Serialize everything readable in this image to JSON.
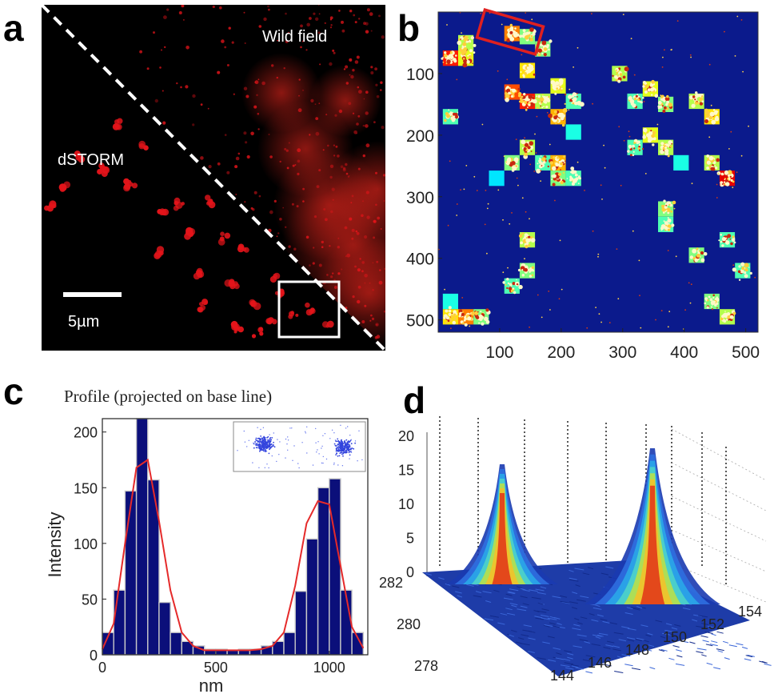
{
  "panels": {
    "a": {
      "letter": "a",
      "wild_label": "Wild field",
      "dstorm_label": "dSTORM",
      "scalebar_label": "5µm",
      "colors": {
        "background": "#000000",
        "signal": "#e4141a",
        "divider": "#ffffff",
        "roi_box": "#ffffff"
      }
    },
    "b": {
      "letter": "b",
      "colors": {
        "background": "#0b1a8c",
        "roi_box": "#e02020"
      }
    },
    "c": {
      "letter": "c",
      "title": "Profile (projected on base line)"
    },
    "d": {
      "letter": "d"
    }
  },
  "chart_data": [
    {
      "panel": "b",
      "type": "heatmap",
      "x_ticks": [
        "100",
        "200",
        "300",
        "400",
        "500"
      ],
      "y_ticks": [
        "100",
        "200",
        "300",
        "400",
        "500"
      ],
      "xlim": [
        0,
        520
      ],
      "ylim": [
        0,
        520
      ],
      "y_reversed": true,
      "grid": false,
      "cells": [
        {
          "x": 45,
          "y": 50,
          "v": 0.55
        },
        {
          "x": 20,
          "y": 75,
          "v": 0.85
        },
        {
          "x": 45,
          "y": 75,
          "v": 0.6
        },
        {
          "x": 120,
          "y": 35,
          "v": 0.75
        },
        {
          "x": 145,
          "y": 40,
          "v": 0.5
        },
        {
          "x": 170,
          "y": 60,
          "v": 0.5
        },
        {
          "x": 145,
          "y": 95,
          "v": 0.65
        },
        {
          "x": 120,
          "y": 130,
          "v": 0.8
        },
        {
          "x": 145,
          "y": 145,
          "v": 0.85
        },
        {
          "x": 195,
          "y": 120,
          "v": 0.6
        },
        {
          "x": 170,
          "y": 145,
          "v": 0.55
        },
        {
          "x": 195,
          "y": 170,
          "v": 0.7
        },
        {
          "x": 220,
          "y": 145,
          "v": 0.45
        },
        {
          "x": 220,
          "y": 195,
          "v": 0.4
        },
        {
          "x": 295,
          "y": 100,
          "v": 0.55
        },
        {
          "x": 320,
          "y": 145,
          "v": 0.45
        },
        {
          "x": 345,
          "y": 125,
          "v": 0.6
        },
        {
          "x": 370,
          "y": 150,
          "v": 0.5
        },
        {
          "x": 420,
          "y": 145,
          "v": 0.55
        },
        {
          "x": 445,
          "y": 170,
          "v": 0.65
        },
        {
          "x": 20,
          "y": 170,
          "v": 0.45
        },
        {
          "x": 120,
          "y": 245,
          "v": 0.5
        },
        {
          "x": 145,
          "y": 220,
          "v": 0.55
        },
        {
          "x": 170,
          "y": 245,
          "v": 0.45
        },
        {
          "x": 195,
          "y": 245,
          "v": 0.7
        },
        {
          "x": 195,
          "y": 270,
          "v": 0.5
        },
        {
          "x": 220,
          "y": 270,
          "v": 0.45
        },
        {
          "x": 320,
          "y": 220,
          "v": 0.45
        },
        {
          "x": 345,
          "y": 200,
          "v": 0.6
        },
        {
          "x": 370,
          "y": 220,
          "v": 0.55
        },
        {
          "x": 395,
          "y": 245,
          "v": 0.4
        },
        {
          "x": 470,
          "y": 270,
          "v": 0.9
        },
        {
          "x": 445,
          "y": 245,
          "v": 0.55
        },
        {
          "x": 95,
          "y": 270,
          "v": 0.35
        },
        {
          "x": 370,
          "y": 320,
          "v": 0.5
        },
        {
          "x": 370,
          "y": 345,
          "v": 0.45
        },
        {
          "x": 145,
          "y": 370,
          "v": 0.55
        },
        {
          "x": 145,
          "y": 420,
          "v": 0.5
        },
        {
          "x": 120,
          "y": 445,
          "v": 0.45
        },
        {
          "x": 420,
          "y": 395,
          "v": 0.5
        },
        {
          "x": 470,
          "y": 370,
          "v": 0.45
        },
        {
          "x": 445,
          "y": 470,
          "v": 0.5
        },
        {
          "x": 470,
          "y": 495,
          "v": 0.55
        },
        {
          "x": 20,
          "y": 495,
          "v": 0.65
        },
        {
          "x": 45,
          "y": 495,
          "v": 0.75
        },
        {
          "x": 70,
          "y": 495,
          "v": 0.5
        },
        {
          "x": 20,
          "y": 470,
          "v": 0.4
        },
        {
          "x": 495,
          "y": 420,
          "v": 0.45
        }
      ]
    },
    {
      "panel": "c",
      "type": "bar",
      "title": "Profile (projected on base line)",
      "xlabel": "nm",
      "ylabel": "Intensity",
      "x_ticks": [
        0,
        500,
        1000
      ],
      "y_ticks": [
        0,
        50,
        100,
        150,
        200
      ],
      "xlim": [
        0,
        1170
      ],
      "ylim": [
        0,
        212
      ],
      "bin_width": 50,
      "bin_centers": [
        25,
        75,
        125,
        175,
        225,
        275,
        325,
        375,
        425,
        475,
        525,
        575,
        625,
        675,
        725,
        775,
        825,
        875,
        925,
        975,
        1025,
        1075,
        1125
      ],
      "values": [
        20,
        58,
        147,
        218,
        157,
        47,
        20,
        12,
        8,
        5,
        5,
        4,
        5,
        5,
        8,
        12,
        20,
        57,
        104,
        150,
        158,
        58,
        20
      ],
      "fit": {
        "name": "fit",
        "x": [
          0,
          50,
          100,
          150,
          200,
          250,
          300,
          350,
          400,
          450,
          500,
          550,
          600,
          650,
          700,
          750,
          800,
          850,
          900,
          950,
          1000,
          1050,
          1100,
          1150
        ],
        "y": [
          5,
          28,
          100,
          168,
          175,
          120,
          58,
          20,
          8,
          4,
          4,
          4,
          4,
          4,
          5,
          8,
          20,
          62,
          118,
          138,
          135,
          80,
          25,
          6
        ]
      },
      "inset": "scatter of localizations (two clusters)"
    },
    {
      "panel": "d",
      "type": "surface",
      "x_ticks": [
        "144",
        "146",
        "148",
        "150",
        "152",
        "154"
      ],
      "y_ticks": [
        "278",
        "280",
        "282"
      ],
      "z_ticks": [
        "0",
        "5",
        "10",
        "15",
        "20"
      ],
      "zlim": [
        0,
        20
      ]
    }
  ]
}
